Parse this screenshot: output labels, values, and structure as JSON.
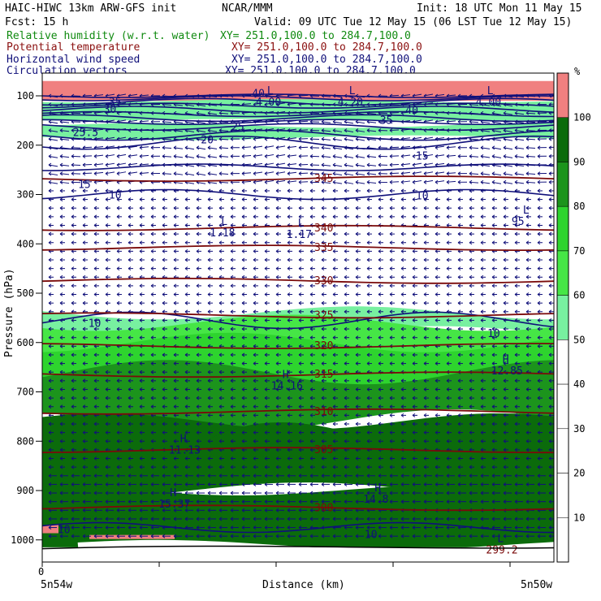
{
  "header": {
    "title": "HAIC-HIWC 13km ARW-GFS init",
    "org": "NCAR/MMM",
    "init": "Init: 18 UTC Mon 11 May 15",
    "fcst": "Fcst:   15 h",
    "valid": "Valid: 09 UTC Tue 12 May 15 (06 LST Tue 12 May 15)"
  },
  "fields": [
    {
      "name": "Relative humidity (w.r.t. water)",
      "xy": "XY= 251.0,100.0 to 284.7,100.0",
      "color": "#108a10"
    },
    {
      "name": "Potential temperature",
      "xy": "XY= 251.0,100.0 to 284.7,100.0",
      "color": "#8b1010"
    },
    {
      "name": "Horizontal wind speed",
      "xy": "XY= 251.0,100.0 to 284.7,100.0",
      "color": "#10107a"
    },
    {
      "name": "Circulation vectors",
      "xy": "XY= 251.0,100.0 to 284.7,100.0",
      "color": "#10107a"
    }
  ],
  "axes": {
    "ylabel": "Pressure (hPa)",
    "xlabel": "Distance (km)",
    "x_left": "5n54w",
    "x_right": "5n50w",
    "x_origin": "0",
    "y_ticks": [
      "100",
      "200",
      "300",
      "400",
      "500",
      "600",
      "700",
      "800",
      "900",
      "1000"
    ]
  },
  "colorbar": {
    "unit": "%",
    "ticks": [
      "100",
      "90",
      "80",
      "70",
      "60",
      "50",
      "40",
      "30",
      "20",
      "10"
    ],
    "bins": [
      {
        "from": 100,
        "to": 110,
        "color": "#f08080"
      },
      {
        "from": 90,
        "to": 100,
        "color": "#0b6b0b"
      },
      {
        "from": 80,
        "to": 90,
        "color": "#1c941c"
      },
      {
        "from": 70,
        "to": 80,
        "color": "#2ed42e"
      },
      {
        "from": 60,
        "to": 70,
        "color": "#46e646"
      },
      {
        "from": 50,
        "to": 60,
        "color": "#78f0a0"
      },
      {
        "from": 0,
        "to": 50,
        "color": "#ffffff"
      }
    ]
  },
  "chart_data": {
    "type": "heatmap",
    "title": "Relative humidity (w.r.t. water) / Potential temperature / Horizontal wind speed / Circulation vectors",
    "xlabel": "Distance (km)",
    "ylabel": "Pressure (hPa)",
    "ylim": [
      1000,
      100
    ],
    "theta_contours": [
      {
        "label": "345",
        "p": 268
      },
      {
        "label": "340",
        "p": 368
      },
      {
        "label": "335",
        "p": 408
      },
      {
        "label": "330",
        "p": 475
      },
      {
        "label": "325",
        "p": 545
      },
      {
        "label": "320",
        "p": 607
      },
      {
        "label": "315",
        "p": 665
      },
      {
        "label": "310",
        "p": 740
      },
      {
        "label": "305",
        "p": 818
      },
      {
        "label": "300",
        "p": 935
      }
    ],
    "wind_labels": [
      {
        "label": "30",
        "x": 0.12,
        "p": 128
      },
      {
        "label": "25",
        "x": 0.37,
        "p": 163
      },
      {
        "label": "20",
        "x": 0.31,
        "p": 190
      },
      {
        "label": "15",
        "x": 0.73,
        "p": 223
      },
      {
        "label": "15",
        "x": 0.07,
        "p": 280
      },
      {
        "label": "10",
        "x": 0.13,
        "p": 302
      },
      {
        "label": "10",
        "x": 0.73,
        "p": 303
      },
      {
        "label": "10",
        "x": 0.09,
        "p": 562
      },
      {
        "label": "10",
        "x": 0.87,
        "p": 582
      },
      {
        "label": "10",
        "x": 0.03,
        "p": 980
      },
      {
        "label": "10",
        "x": 0.63,
        "p": 990
      },
      {
        "label": "35",
        "x": 0.13,
        "p": 113
      },
      {
        "label": "35",
        "x": 0.66,
        "p": 150
      },
      {
        "label": "40",
        "x": 0.71,
        "p": 130
      },
      {
        "label": "40",
        "x": 0.41,
        "p": 96
      },
      {
        "label": "25.5",
        "x": 0.06,
        "p": 175
      }
    ],
    "extrema": [
      {
        "type": "L",
        "value": "1.18",
        "x": 0.34,
        "p": 375
      },
      {
        "type": "L",
        "value": "1.17",
        "x": 0.49,
        "p": 378
      },
      {
        "type": "L",
        "value": "95",
        "x": 0.93,
        "p": 352
      },
      {
        "type": "H",
        "value": "12.85",
        "x": 0.89,
        "p": 655
      },
      {
        "type": "H",
        "value": "14.16",
        "x": 0.46,
        "p": 685
      },
      {
        "type": "H",
        "value": "11.13",
        "x": 0.26,
        "p": 815
      },
      {
        "type": "H",
        "value": "15.37",
        "x": 0.24,
        "p": 925
      },
      {
        "type": "H",
        "value": "14.8",
        "x": 0.64,
        "p": 915
      },
      {
        "type": "L",
        "value": "299.2",
        "x": 0.88,
        "p": 1018
      },
      {
        "type": "L",
        "value": "4.00",
        "x": 0.86,
        "p": 110
      },
      {
        "type": "L",
        "value": "4.20",
        "x": 0.59,
        "p": 110
      },
      {
        "type": "L",
        "value": "4.00",
        "x": 0.43,
        "p": 110
      }
    ]
  }
}
